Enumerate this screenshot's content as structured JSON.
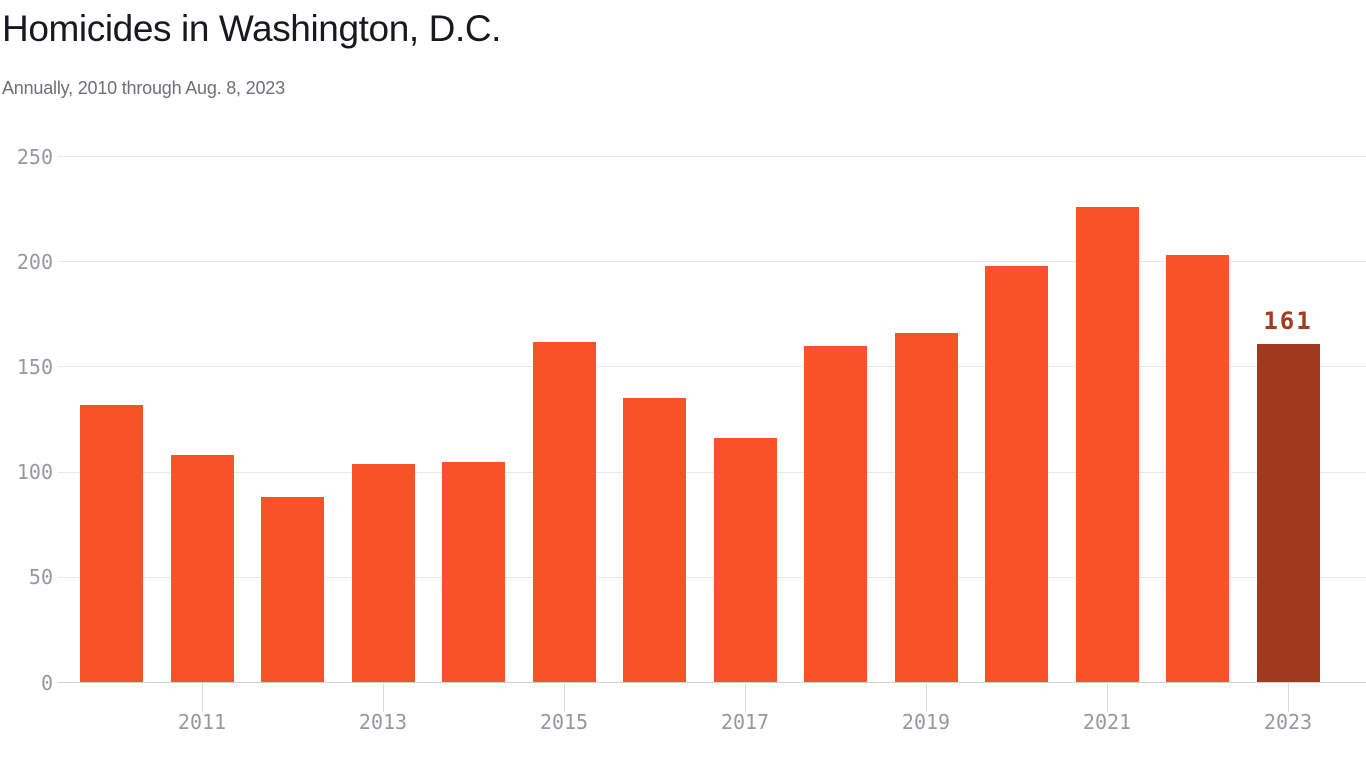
{
  "header": {
    "title": "Homicides in Washington, D.C.",
    "subtitle": "Annually, 2010 through Aug. 8, 2023"
  },
  "chart_data": {
    "type": "bar",
    "title": "Homicides in Washington, D.C.",
    "subtitle": "Annually, 2010 through Aug. 8, 2023",
    "categories": [
      "2010",
      "2011",
      "2012",
      "2013",
      "2014",
      "2015",
      "2016",
      "2017",
      "2018",
      "2019",
      "2020",
      "2021",
      "2022",
      "2023"
    ],
    "values": [
      132,
      108,
      88,
      104,
      105,
      162,
      135,
      116,
      160,
      166,
      198,
      226,
      203,
      161
    ],
    "xlabel": "",
    "ylabel": "",
    "ylim": [
      0,
      250
    ],
    "yticks": [
      0,
      50,
      100,
      150,
      200,
      250
    ],
    "xtick_labels": [
      "2011",
      "2013",
      "2015",
      "2017",
      "2019",
      "2021",
      "2023"
    ],
    "grid": true,
    "legend": "none",
    "bar_color": "#fa5228",
    "highlight_category": "2023",
    "highlight_color": "#a0391e",
    "highlight_label": "161",
    "highlight_label_color": "#a43b1c",
    "axis_text_color": "#96989d"
  }
}
